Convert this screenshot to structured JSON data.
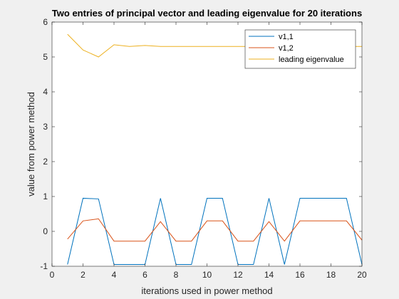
{
  "chart_data": {
    "type": "line",
    "title": "Two entries of principal vector and leading eigenvalue for 20 iterations",
    "xlabel": "iterations used in power method",
    "ylabel": "value from power method",
    "xlim": [
      0,
      20
    ],
    "ylim": [
      -1,
      6
    ],
    "xticks": [
      0,
      2,
      4,
      6,
      8,
      10,
      12,
      14,
      16,
      18,
      20
    ],
    "yticks": [
      -1,
      0,
      1,
      2,
      3,
      4,
      5,
      6
    ],
    "grid": false,
    "legend_position": "top-right",
    "x": [
      1,
      2,
      3,
      4,
      5,
      6,
      7,
      8,
      9,
      10,
      11,
      12,
      13,
      14,
      15,
      16,
      17,
      18,
      19,
      20
    ],
    "series": [
      {
        "name": "v1,1",
        "color": "#0072BD",
        "values": [
          -0.95,
          0.95,
          0.93,
          -0.95,
          -0.95,
          -0.95,
          0.95,
          -0.95,
          -0.95,
          0.95,
          0.95,
          -0.95,
          -0.95,
          0.95,
          -0.95,
          0.95,
          0.95,
          0.95,
          0.95,
          -0.95
        ]
      },
      {
        "name": "v1,2",
        "color": "#D95319",
        "values": [
          -0.22,
          0.3,
          0.36,
          -0.28,
          -0.28,
          -0.28,
          0.28,
          -0.28,
          -0.28,
          0.3,
          0.3,
          -0.28,
          -0.28,
          0.28,
          -0.28,
          0.3,
          0.3,
          0.3,
          0.3,
          -0.25
        ]
      },
      {
        "name": "leading eigenvalue",
        "color": "#EDB120",
        "values": [
          5.65,
          5.2,
          5.0,
          5.35,
          5.3,
          5.33,
          5.3,
          5.3,
          5.3,
          5.3,
          5.3,
          5.3,
          5.3,
          5.3,
          5.3,
          5.3,
          5.3,
          5.3,
          5.3,
          5.3
        ]
      }
    ]
  }
}
